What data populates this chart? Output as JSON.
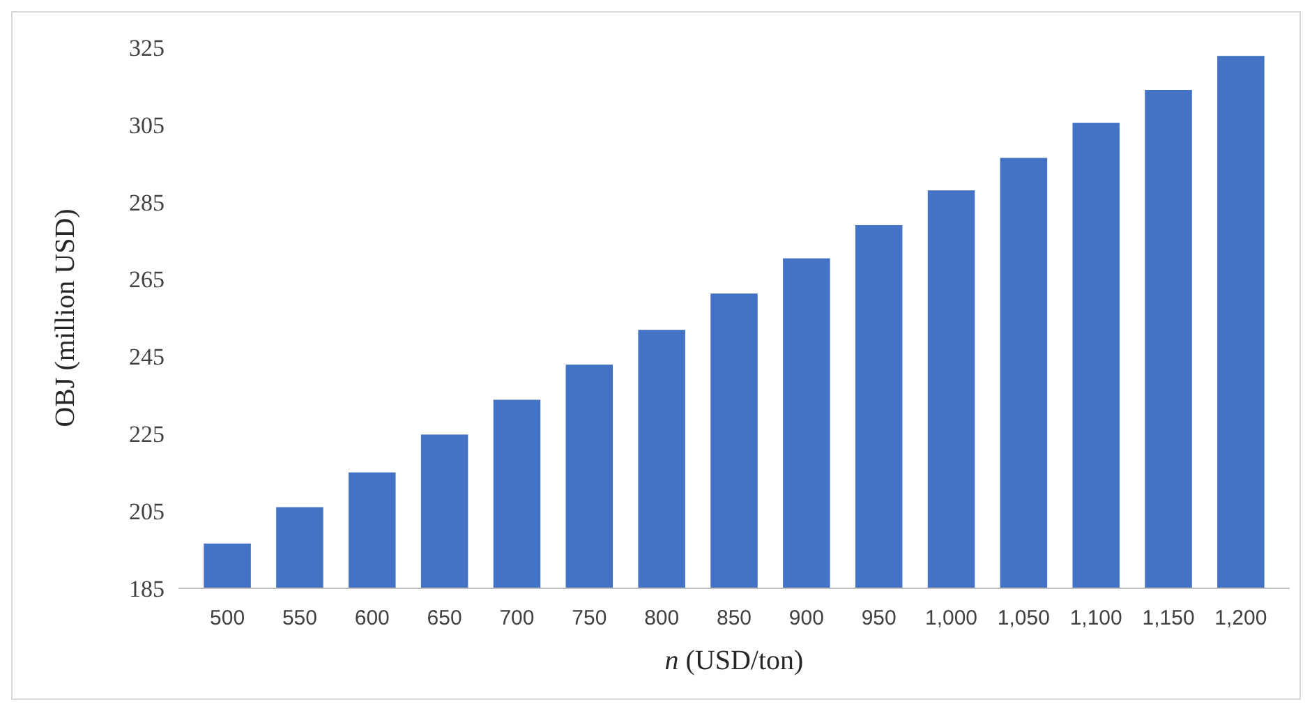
{
  "chart_data": {
    "type": "bar",
    "xlabel": "n (USD/ton)",
    "ylabel": "OBJ (million USD)",
    "categories": [
      "500",
      "550",
      "600",
      "650",
      "700",
      "750",
      "800",
      "850",
      "900",
      "950",
      "1,000",
      "1,050",
      "1,100",
      "1,150",
      "1,200"
    ],
    "values": [
      196.6,
      206,
      215,
      224.8,
      233.8,
      242.9,
      251.9,
      261.3,
      270.4,
      279,
      288,
      296.4,
      305.5,
      314,
      322.8
    ],
    "color": "#4472c4",
    "ylim": [
      185,
      325
    ],
    "yticks": [
      185,
      205,
      225,
      245,
      265,
      285,
      305,
      325
    ],
    "grid": false
  }
}
